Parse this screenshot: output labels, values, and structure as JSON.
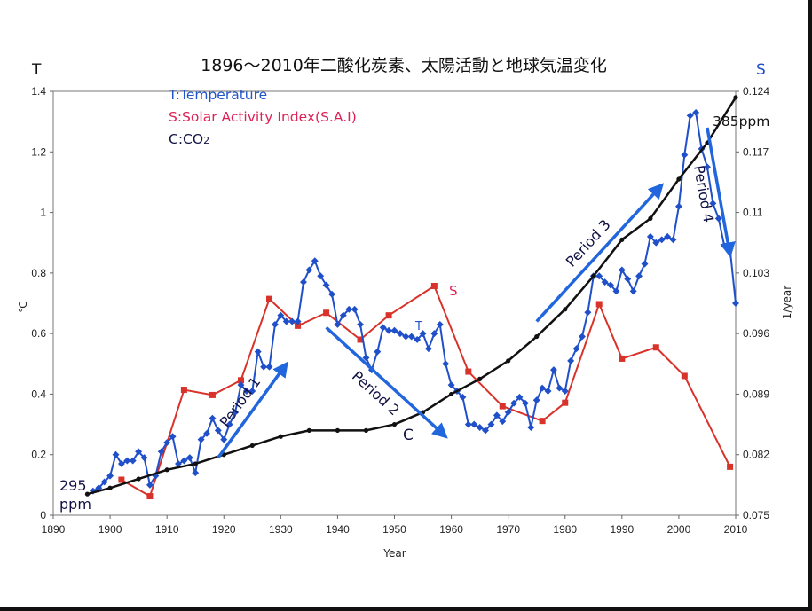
{
  "chart_data": {
    "type": "line",
    "title": "1896〜2010年二酸化炭素、太陽活動と地球気温変化",
    "xlabel": "Year",
    "left_axis": {
      "letter": "T",
      "unit": "℃",
      "ylim": [
        0,
        1.4
      ],
      "ticks": [
        "0",
        "0.2",
        "0.4",
        "0.6",
        "0.8",
        "1",
        "1.2",
        "1.4"
      ]
    },
    "right_axis": {
      "letter": "S",
      "unit": "1/year",
      "ylim": [
        0.075,
        0.124
      ],
      "ticks": [
        "0.075",
        "0.082",
        "0.089",
        "0.096",
        "0.103",
        "0.11",
        "0.117",
        "0.124"
      ]
    },
    "x_ticks": [
      "1890",
      "1900",
      "1910",
      "1920",
      "1930",
      "1940",
      "1950",
      "1960",
      "1970",
      "1980",
      "1990",
      "2000",
      "2010"
    ],
    "xlim": [
      1890,
      2010
    ],
    "legend": [
      {
        "text": "T:Temperature",
        "color": "#2255cc"
      },
      {
        "text": "S:Solar Activity Index(S.A.I)",
        "color": "#dd2255"
      },
      {
        "text": "C:CO",
        "sub": "2",
        "color": "#111144"
      }
    ],
    "series": [
      {
        "name": "T",
        "color": "#1f4fc9",
        "axis": "left",
        "x": [
          1897,
          1898,
          1899,
          1900,
          1901,
          1902,
          1903,
          1904,
          1905,
          1906,
          1907,
          1908,
          1909,
          1910,
          1911,
          1912,
          1913,
          1914,
          1915,
          1916,
          1917,
          1918,
          1919,
          1920,
          1921,
          1922,
          1923,
          1924,
          1925,
          1926,
          1927,
          1928,
          1929,
          1930,
          1931,
          1932,
          1933,
          1934,
          1935,
          1936,
          1937,
          1938,
          1939,
          1940,
          1941,
          1942,
          1943,
          1944,
          1945,
          1946,
          1947,
          1948,
          1949,
          1950,
          1951,
          1952,
          1953,
          1954,
          1955,
          1956,
          1957,
          1958,
          1959,
          1960,
          1961,
          1962,
          1963,
          1964,
          1965,
          1966,
          1967,
          1968,
          1969,
          1970,
          1971,
          1972,
          1973,
          1974,
          1975,
          1976,
          1977,
          1978,
          1979,
          1980,
          1981,
          1982,
          1983,
          1984,
          1985,
          1986,
          1987,
          1988,
          1989,
          1990,
          1991,
          1992,
          1993,
          1994,
          1995,
          1996,
          1997,
          1998,
          1999,
          2000,
          2001,
          2002,
          2003,
          2004,
          2005,
          2006,
          2007,
          2008,
          2009,
          2010
        ],
        "y": [
          0.08,
          0.09,
          0.11,
          0.13,
          0.2,
          0.17,
          0.18,
          0.18,
          0.21,
          0.19,
          0.1,
          0.13,
          0.21,
          0.24,
          0.26,
          0.17,
          0.18,
          0.19,
          0.14,
          0.25,
          0.27,
          0.32,
          0.28,
          0.25,
          0.3,
          0.34,
          0.43,
          0.41,
          0.41,
          0.54,
          0.49,
          0.49,
          0.63,
          0.66,
          0.64,
          0.64,
          0.64,
          0.77,
          0.81,
          0.84,
          0.79,
          0.76,
          0.73,
          0.63,
          0.66,
          0.68,
          0.68,
          0.63,
          0.52,
          0.48,
          0.54,
          0.62,
          0.61,
          0.61,
          0.6,
          0.59,
          0.59,
          0.58,
          0.6,
          0.55,
          0.6,
          0.63,
          0.5,
          0.43,
          0.41,
          0.39,
          0.3,
          0.3,
          0.29,
          0.28,
          0.3,
          0.33,
          0.31,
          0.34,
          0.37,
          0.39,
          0.37,
          0.29,
          0.38,
          0.42,
          0.41,
          0.48,
          0.42,
          0.41,
          0.51,
          0.55,
          0.59,
          0.67,
          0.79,
          0.79,
          0.77,
          0.76,
          0.74,
          0.81,
          0.78,
          0.74,
          0.79,
          0.83,
          0.92,
          0.9,
          0.91,
          0.92,
          0.91,
          1.02,
          1.19,
          1.32,
          1.33,
          1.21,
          1.15,
          1.03,
          0.98,
          0.89,
          0.88,
          0.7
        ]
      },
      {
        "name": "S",
        "color": "#d9322a",
        "axis": "right",
        "x": [
          1902,
          1907,
          1913,
          1918,
          1923,
          1928,
          1933,
          1938,
          1944,
          1949,
          1957,
          1963,
          1969,
          1976,
          1980,
          1986,
          1990,
          1996,
          2001,
          2009
        ],
        "y": [
          0.0791,
          0.0772,
          0.0895,
          0.0889,
          0.0906,
          0.1,
          0.0969,
          0.0984,
          0.0953,
          0.0981,
          0.1015,
          0.0916,
          0.0876,
          0.0859,
          0.088,
          0.0994,
          0.0931,
          0.0944,
          0.0911,
          0.0806
        ]
      },
      {
        "name": "C",
        "color": "#111111",
        "axis": "left",
        "x": [
          1896,
          1900,
          1905,
          1910,
          1915,
          1920,
          1925,
          1930,
          1935,
          1940,
          1945,
          1950,
          1955,
          1960,
          1965,
          1970,
          1975,
          1980,
          1985,
          1990,
          1995,
          2000,
          2005,
          2010
        ],
        "y": [
          0.07,
          0.09,
          0.12,
          0.15,
          0.17,
          0.2,
          0.23,
          0.26,
          0.28,
          0.28,
          0.28,
          0.3,
          0.34,
          0.4,
          0.45,
          0.51,
          0.59,
          0.68,
          0.79,
          0.91,
          0.98,
          1.11,
          1.23,
          1.38
        ]
      }
    ],
    "annotations": [
      {
        "text": "S",
        "color": "#dd2255"
      },
      {
        "text": "T",
        "color": "#2255cc"
      },
      {
        "text": "C",
        "color": "#111144"
      },
      {
        "text": "385ppm",
        "color": "#111111"
      },
      {
        "text": "295",
        "color": "#111144"
      },
      {
        "text": "ppm",
        "color": "#111144"
      }
    ],
    "periods": [
      {
        "label": "Period 1",
        "from": [
          1919,
          0.19
        ],
        "to": [
          1931,
          0.5
        ]
      },
      {
        "label": "Period 2",
        "from": [
          1938,
          0.62
        ],
        "to": [
          1959,
          0.26
        ]
      },
      {
        "label": "Period 3",
        "from": [
          1975,
          0.64
        ],
        "to": [
          1997,
          1.09
        ]
      },
      {
        "label": "Period 4",
        "from": [
          2005,
          1.28
        ],
        "to": [
          2009,
          0.86
        ]
      }
    ]
  }
}
